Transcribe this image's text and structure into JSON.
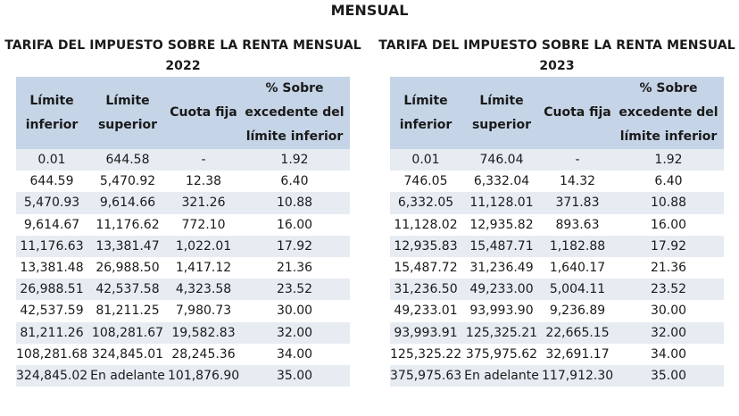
{
  "title": "MENSUAL",
  "headers": [
    "Límite inferior",
    "Límite superior",
    "Cuota fija",
    "% Sobre excedente del límite inferior"
  ],
  "tables": [
    {
      "title_line1": "TARIFA DEL IMPUESTO SOBRE LA RENTA MENSUAL",
      "title_line2": "2022",
      "rows": [
        [
          "0.01",
          "644.58",
          "-",
          "1.92"
        ],
        [
          "644.59",
          "5,470.92",
          "12.38",
          "6.40"
        ],
        [
          "5,470.93",
          "9,614.66",
          "321.26",
          "10.88"
        ],
        [
          "9,614.67",
          "11,176.62",
          "772.10",
          "16.00"
        ],
        [
          "11,176.63",
          "13,381.47",
          "1,022.01",
          "17.92"
        ],
        [
          "13,381.48",
          "26,988.50",
          "1,417.12",
          "21.36"
        ],
        [
          "26,988.51",
          "42,537.58",
          "4,323.58",
          "23.52"
        ],
        [
          "42,537.59",
          "81,211.25",
          "7,980.73",
          "30.00"
        ],
        [
          "81,211.26",
          "108,281.67",
          "19,582.83",
          "32.00"
        ],
        [
          "108,281.68",
          "324,845.01",
          "28,245.36",
          "34.00"
        ],
        [
          "324,845.02",
          "En adelante",
          "101,876.90",
          "35.00"
        ]
      ]
    },
    {
      "title_line1": "TARIFA DEL IMPUESTO SOBRE LA RENTA MENSUAL",
      "title_line2": "2023",
      "rows": [
        [
          "0.01",
          "746.04",
          "-",
          "1.92"
        ],
        [
          "746.05",
          "6,332.04",
          "14.32",
          "6.40"
        ],
        [
          "6,332.05",
          "11,128.01",
          "371.83",
          "10.88"
        ],
        [
          "11,128.02",
          "12,935.82",
          "893.63",
          "16.00"
        ],
        [
          "12,935.83",
          "15,487.71",
          "1,182.88",
          "17.92"
        ],
        [
          "15,487.72",
          "31,236.49",
          "1,640.17",
          "21.36"
        ],
        [
          "31,236.50",
          "49,233.00",
          "5,004.11",
          "23.52"
        ],
        [
          "49,233.01",
          "93,993.90",
          "9,236.89",
          "30.00"
        ],
        [
          "93,993.91",
          "125,325.21",
          "22,665.15",
          "32.00"
        ],
        [
          "125,325.22",
          "375,975.62",
          "32,691.17",
          "34.00"
        ],
        [
          "375,975.63",
          "En adelante",
          "117,912.30",
          "35.00"
        ]
      ]
    }
  ]
}
